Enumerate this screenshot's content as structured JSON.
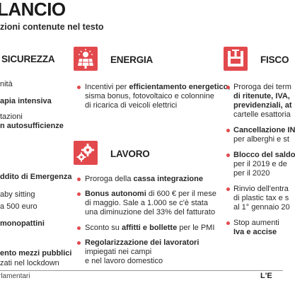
{
  "header": {
    "title": "LANCIO",
    "subtitle": "zioni contenute nel testo"
  },
  "sicurezza": {
    "title": "SICUREZZA",
    "lines": [
      "nità",
      "apia intensiva",
      "tazioni",
      "n autosufficienze",
      "ddito di Emergenza",
      "aby sitting",
      "a 500 euro",
      "monopattini",
      "ento mezzi pubblici",
      "zati nel lockdown"
    ]
  },
  "energia": {
    "title": "ENERGIA",
    "icon": "solar-panel-icon",
    "items": [
      {
        "l1a": "Incentivi per ",
        "l1b": "efficientamento energetico",
        "l1c": ",",
        "l2": "sisma bonus, fotovoltaico e colonnine",
        "l3": "di ricarica di veicoli elettrici"
      }
    ]
  },
  "lavoro": {
    "title": "LAVORO",
    "icon": "gears-icon",
    "items": [
      {
        "a": "Proroga della ",
        "b": "cassa integrazione"
      },
      {
        "a": "Bonus autonomi",
        "b": " di 600 € per il mese",
        "l2": "di maggio. Sale a 1.000 se c'è stata",
        "l3": "una diminuzione del 33% del fatturato"
      },
      {
        "a": "Sconto su ",
        "b": "affitti e bollette",
        "c": " per le PMI"
      },
      {
        "a": "Regolarizzazione dei lavoratori",
        "l2": "impiegati nei campi",
        "l3": "e nel lavoro domestico"
      }
    ]
  },
  "fisco": {
    "title": "FISCO",
    "icon": "vise-clamp-icon",
    "lines": [
      "Proroga dei term",
      "di ritenute, IVA,",
      "previdenziali, at",
      "cartelle esattoria",
      "Cancellazione IN",
      "per alberghi e st",
      "Blocco del saldo",
      "per il 2019 e de",
      "per il 2020",
      "Rinvio dell'entra",
      "di plastic tax e s",
      "al 1° gennaio 20",
      "Stop aumenti",
      "Iva e accise"
    ]
  },
  "footer": {
    "source": "rlamentari",
    "brand": "L'E"
  },
  "colors": {
    "accent": "#e2494d"
  }
}
